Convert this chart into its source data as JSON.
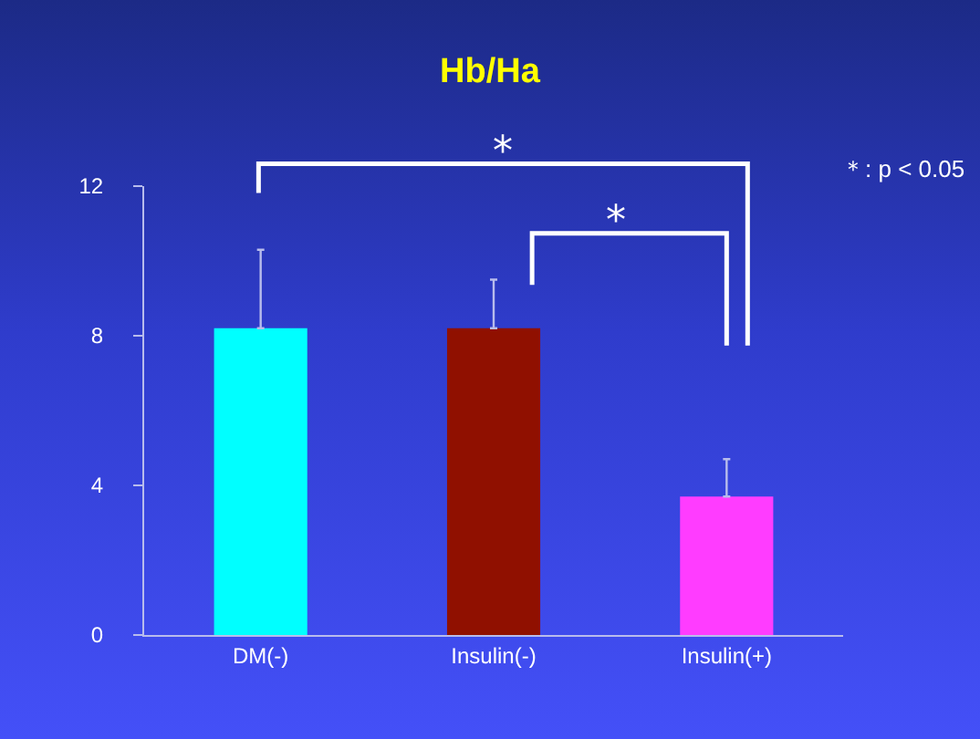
{
  "chart_data": {
    "type": "bar",
    "title": "Hb/Ha",
    "categories": [
      "DM(-)",
      "Insulin(-)",
      "Insulin(+)"
    ],
    "values": [
      8.2,
      8.2,
      3.7
    ],
    "colors": [
      "#00ffff",
      "#901000",
      "#ff3cff"
    ],
    "errors": [
      [
        8.2,
        10.3
      ],
      [
        8.2,
        9.5
      ],
      [
        3.7,
        4.7
      ]
    ],
    "ylim": [
      0,
      12
    ],
    "yticks": [
      0,
      4,
      8,
      12
    ],
    "grid": false,
    "annotations": [
      "*",
      "*",
      "＊: p < 0.05"
    ]
  }
}
